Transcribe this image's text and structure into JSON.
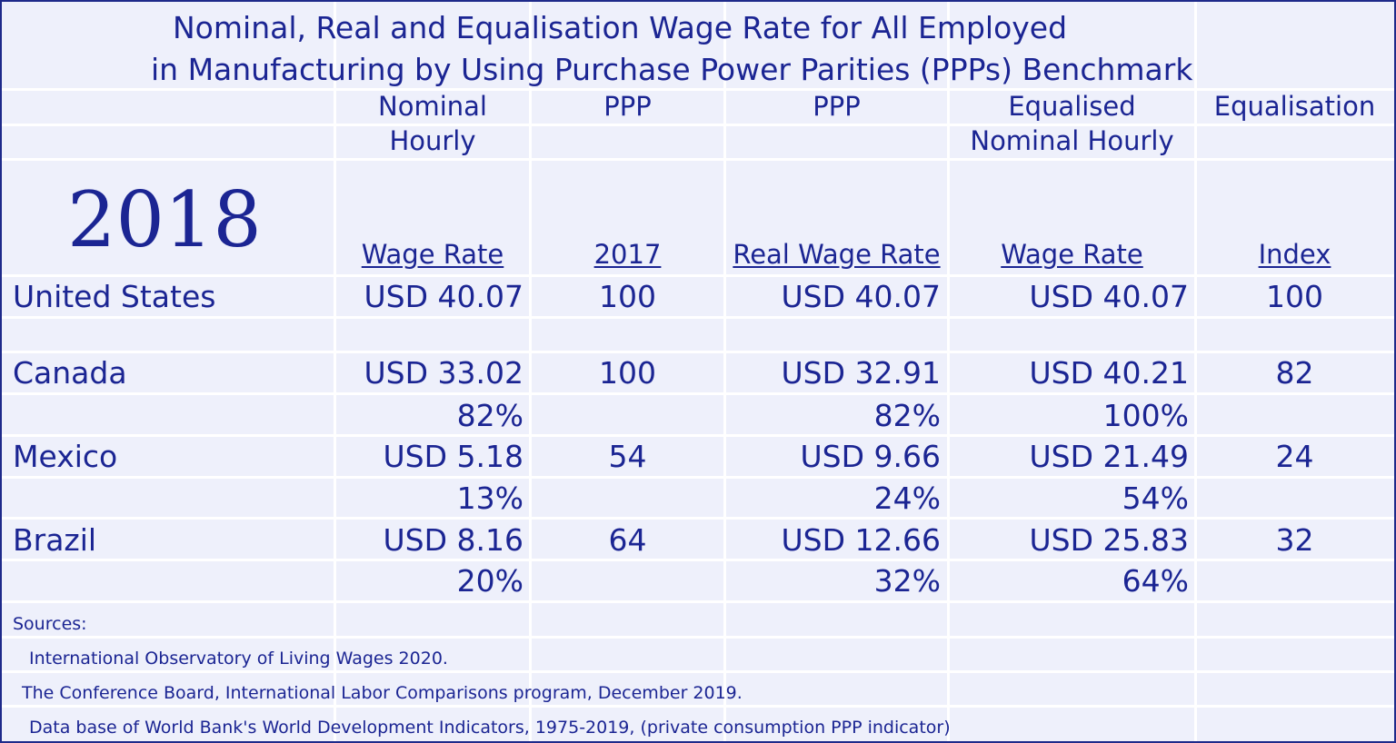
{
  "title_line1": "Nominal, Real and Equalisation Wage Rate for All Employed",
  "title_line2": "in Manufacturing by Using Purchase Power Parities (PPPs) Benchmark",
  "year": "2018",
  "headers": {
    "col1_top": "Nominal",
    "col1_mid": "Hourly",
    "col1_bottom": "Wage Rate",
    "col2_top": "PPP",
    "col2_bottom": "2017",
    "col3_top": "PPP",
    "col3_bottom": "Real Wage Rate",
    "col4_top": "Equalised",
    "col4_mid": "Nominal Hourly",
    "col4_bottom": "Wage Rate",
    "col5_top": "Equalisation",
    "col5_bottom": "Index"
  },
  "rows": [
    {
      "country": "United States",
      "nominal": "USD 40.07",
      "ppp": "100",
      "real": "USD 40.07",
      "equalised": "USD 40.07",
      "index": "100",
      "nominal_pct": "",
      "real_pct": "",
      "equalised_pct": ""
    },
    {
      "country": "Canada",
      "nominal": "USD 33.02",
      "ppp": "100",
      "real": "USD 32.91",
      "equalised": "USD 40.21",
      "index": "82",
      "nominal_pct": "82%",
      "real_pct": "82%",
      "equalised_pct": "100%"
    },
    {
      "country": "Mexico",
      "nominal": "USD 5.18",
      "ppp": "54",
      "real": "USD 9.66",
      "equalised": "USD 21.49",
      "index": "24",
      "nominal_pct": "13%",
      "real_pct": "24%",
      "equalised_pct": "54%"
    },
    {
      "country": "Brazil",
      "nominal": "USD 8.16",
      "ppp": "64",
      "real": "USD 12.66",
      "equalised": "USD 25.83",
      "index": "32",
      "nominal_pct": "20%",
      "real_pct": "32%",
      "equalised_pct": "64%"
    }
  ],
  "sources": {
    "heading": "Sources:",
    "lines": [
      "International Observatory of Living Wages 2020.",
      "The Conference Board, International Labor Comparisons program, December 2019.",
      "Data base of World Bank's World Development Indicators, 1975-2019, (private consumption PPP indicator)"
    ]
  },
  "chart_data": {
    "type": "table",
    "title": "Nominal, Real and Equalisation Wage Rate for All Employed in Manufacturing by Using Purchase Power Parities (PPPs) Benchmark",
    "columns": [
      "Nominal Hourly Wage Rate",
      "PPP 2017",
      "PPP Real Wage Rate",
      "Equalised Nominal Hourly Wage Rate",
      "Equalisation Index"
    ],
    "rows": [
      {
        "name": "United States",
        "values": [
          "USD 40.07",
          "100",
          "USD 40.07",
          "USD 40.07",
          "100"
        ]
      },
      {
        "name": "Canada",
        "values": [
          "USD 33.02",
          "100",
          "USD 32.91",
          "USD 40.21",
          "82"
        ],
        "percent": [
          "82%",
          "",
          "82%",
          "100%",
          ""
        ]
      },
      {
        "name": "Mexico",
        "values": [
          "USD 5.18",
          "54",
          "USD 9.66",
          "USD 21.49",
          "24"
        ],
        "percent": [
          "13%",
          "",
          "24%",
          "54%",
          ""
        ]
      },
      {
        "name": "Brazil",
        "values": [
          "USD 8.16",
          "64",
          "USD 12.66",
          "USD 25.83",
          "32"
        ],
        "percent": [
          "20%",
          "",
          "32%",
          "64%",
          ""
        ]
      }
    ],
    "colors": {
      "text": "#1b2593",
      "background": "#eef0fb",
      "border": "#1e2a8a"
    }
  }
}
